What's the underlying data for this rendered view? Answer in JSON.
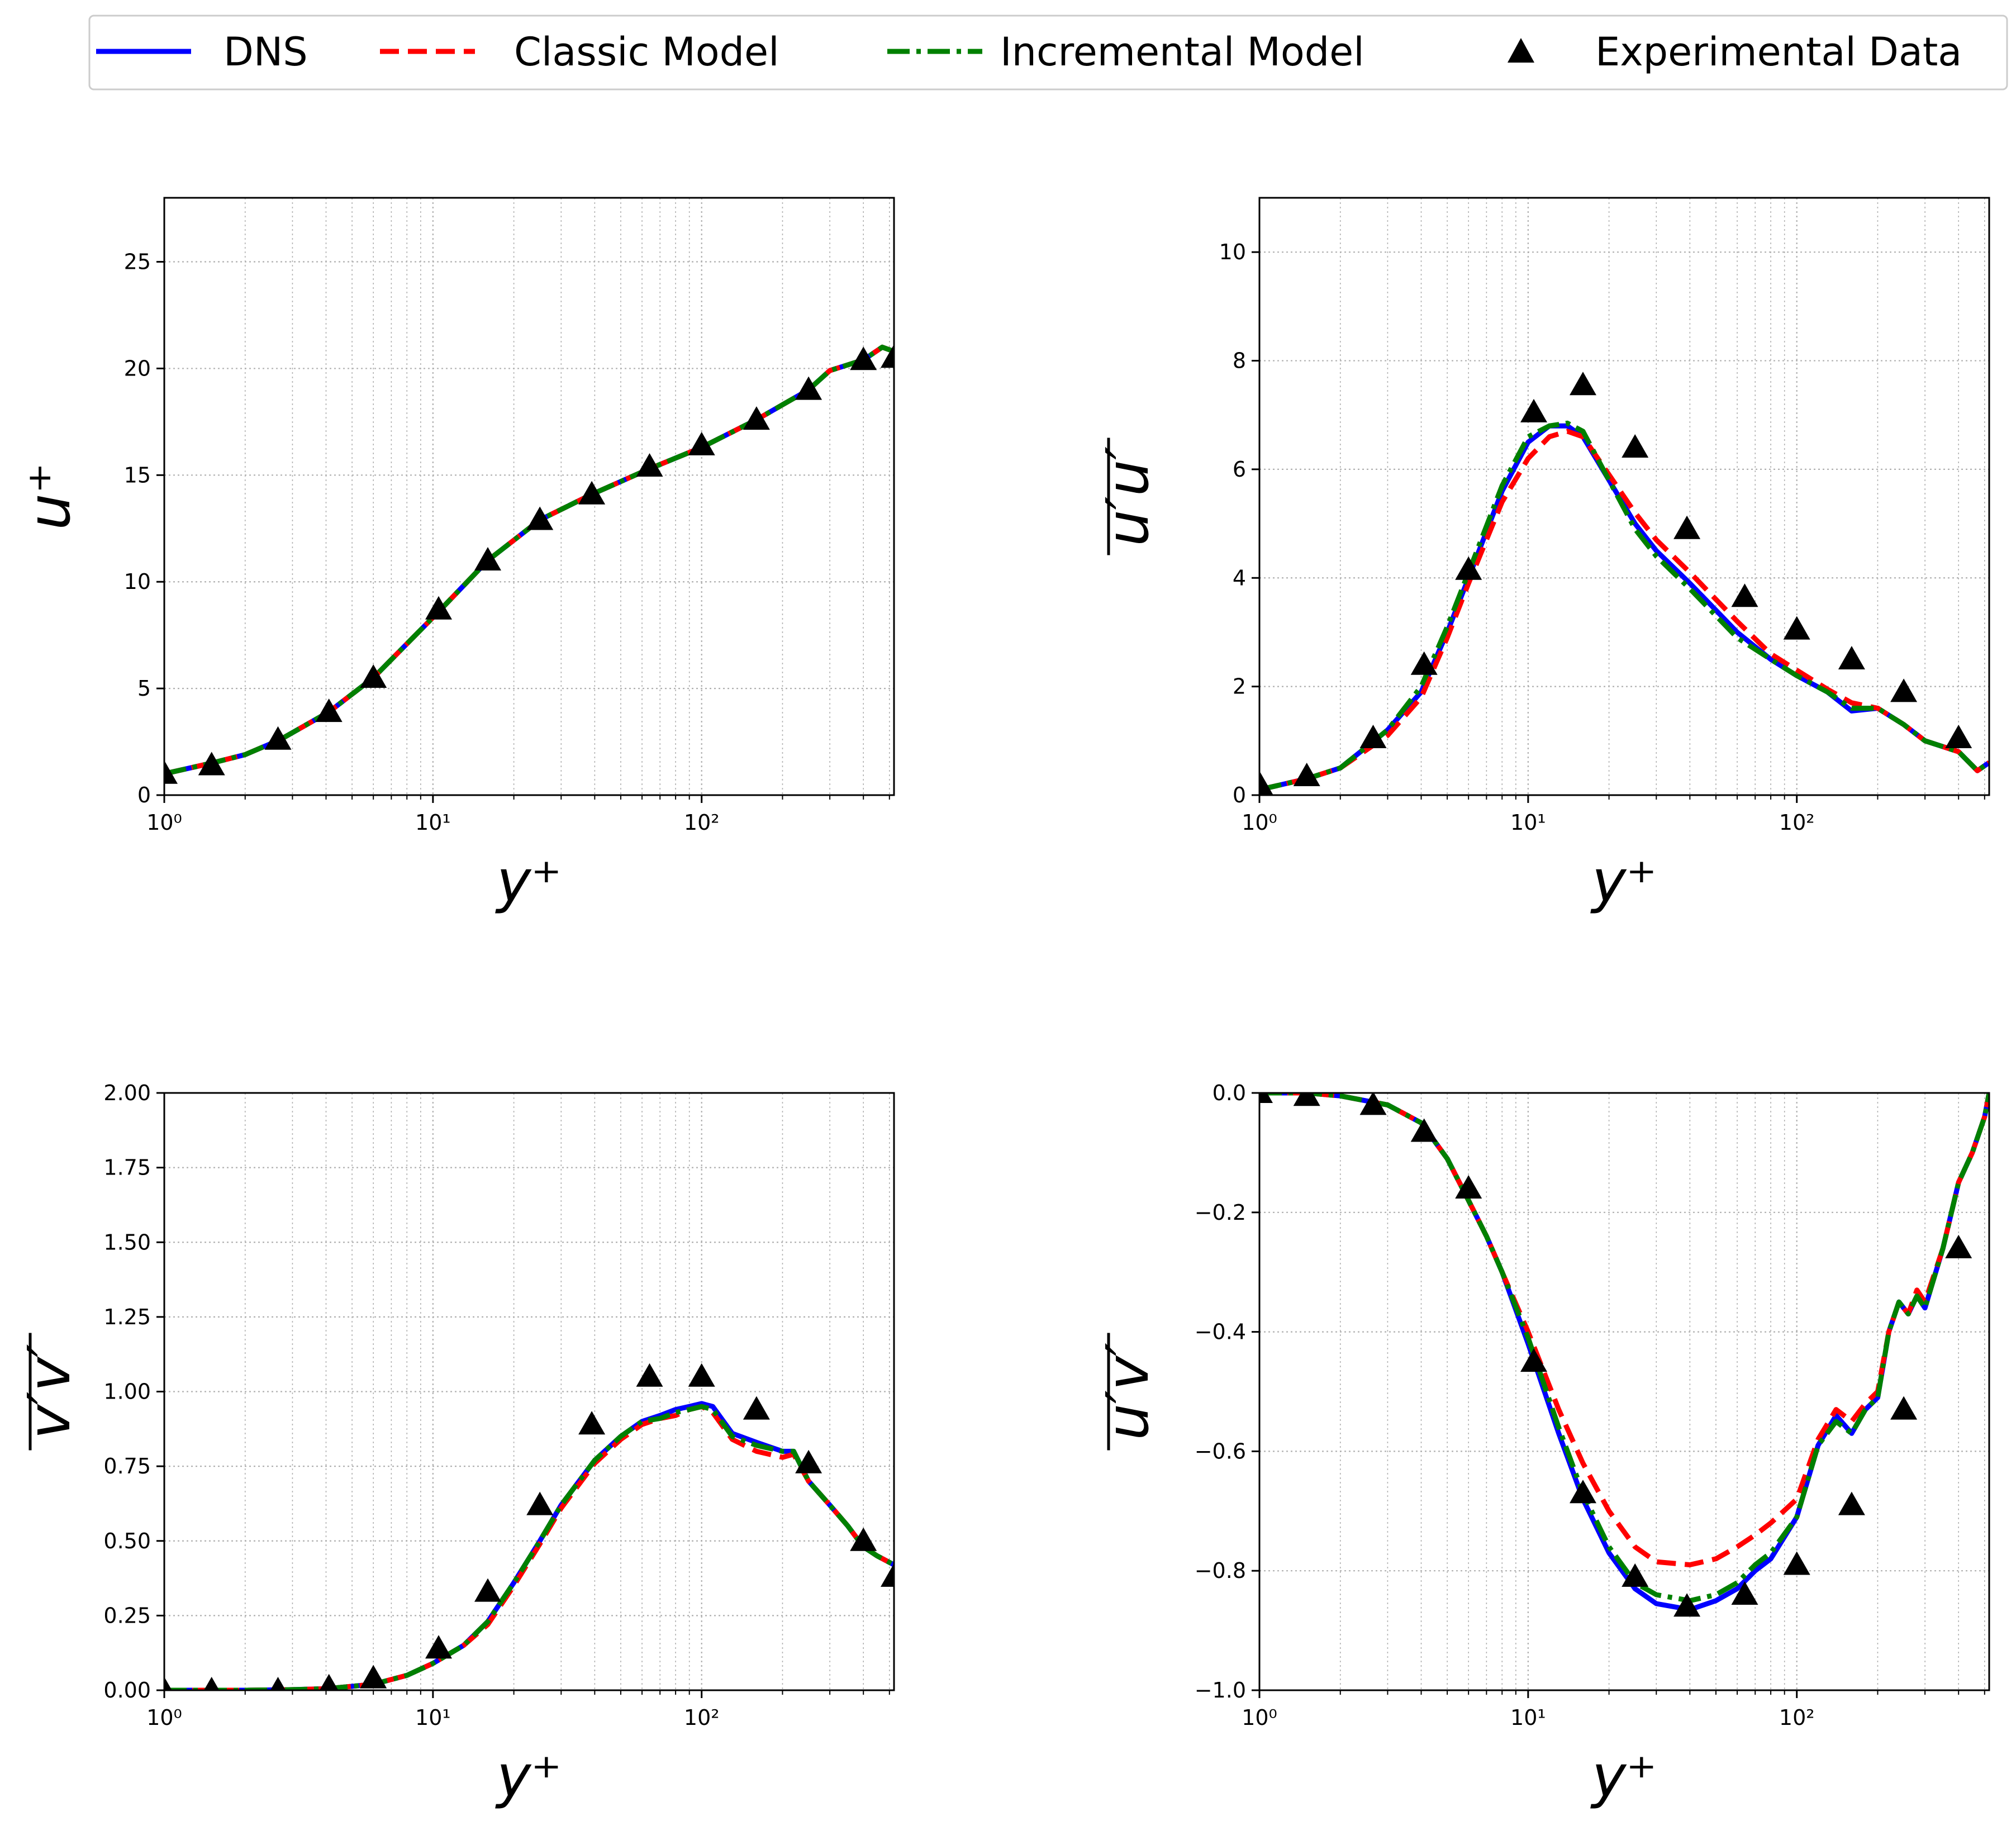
{
  "colors": {
    "dns": "#0000ff",
    "classic": "#ff0000",
    "incremental": "#008000",
    "experimental": "#000000",
    "grid": "#b0b0b0"
  },
  "legend": {
    "items": [
      {
        "key": "dns",
        "label": "DNS",
        "style": "solid"
      },
      {
        "key": "classic",
        "label": "Classic Model",
        "style": "dashed"
      },
      {
        "key": "incremental",
        "label": "Incremental Model",
        "style": "dashdot"
      },
      {
        "key": "experimental",
        "label": "Experimental Data",
        "style": "marker"
      }
    ]
  },
  "chart_data": [
    {
      "type": "line",
      "xscale": "log",
      "xlim": [
        1,
        520
      ],
      "ylim": [
        0,
        28
      ],
      "yticks": [
        0,
        5,
        10,
        15,
        20,
        25
      ],
      "grid": true,
      "xlabel": "y⁺",
      "ylabel": "u⁺",
      "xtick_labels": [
        "10⁰",
        "10¹",
        "10²"
      ],
      "ytick_labels": [
        "0",
        "5",
        "10",
        "15",
        "20",
        "25"
      ],
      "series": [
        {
          "name": "DNS",
          "x": [
            1,
            1.5,
            2,
            2.7,
            4.1,
            6,
            10.5,
            16,
            25,
            39,
            64,
            100,
            160,
            250,
            300,
            400,
            470,
            520
          ],
          "y": [
            1.0,
            1.5,
            1.9,
            2.6,
            3.9,
            5.5,
            8.6,
            11.0,
            12.9,
            14.1,
            15.3,
            16.3,
            17.6,
            19.0,
            19.9,
            20.4,
            21.0,
            20.8
          ]
        },
        {
          "name": "Classic Model",
          "x": [
            1,
            1.5,
            2,
            2.7,
            4.1,
            6,
            10.5,
            16,
            25,
            39,
            64,
            100,
            160,
            250,
            300,
            400,
            470,
            520
          ],
          "y": [
            1.0,
            1.5,
            1.9,
            2.6,
            3.9,
            5.5,
            8.6,
            11.0,
            12.9,
            14.1,
            15.3,
            16.3,
            17.6,
            19.0,
            19.9,
            20.4,
            21.0,
            20.8
          ]
        },
        {
          "name": "Incremental Model",
          "x": [
            1,
            1.5,
            2,
            2.7,
            4.1,
            6,
            10.5,
            16,
            25,
            39,
            64,
            100,
            160,
            250,
            300,
            400,
            470,
            520
          ],
          "y": [
            1.0,
            1.5,
            1.9,
            2.6,
            3.9,
            5.5,
            8.6,
            11.0,
            12.9,
            14.1,
            15.3,
            16.3,
            17.6,
            19.0,
            19.9,
            20.4,
            21.0,
            20.8
          ]
        }
      ],
      "experimental": {
        "x": [
          1,
          1.5,
          2.65,
          4.1,
          6,
          10.5,
          16,
          25,
          39,
          64,
          100,
          160,
          250,
          400,
          520
        ],
        "y": [
          1.0,
          1.4,
          2.6,
          3.9,
          5.5,
          8.7,
          11.0,
          12.9,
          14.1,
          15.4,
          16.4,
          17.6,
          19.0,
          20.4,
          20.5
        ]
      }
    },
    {
      "type": "line",
      "xscale": "log",
      "xlim": [
        1,
        520
      ],
      "ylim": [
        0,
        11
      ],
      "yticks": [
        0,
        2,
        4,
        6,
        8,
        10
      ],
      "grid": true,
      "xlabel": "y⁺",
      "ylabel": "u′u′",
      "xtick_labels": [
        "10⁰",
        "10¹",
        "10²"
      ],
      "ytick_labels": [
        "0",
        "2",
        "4",
        "6",
        "8",
        "10"
      ],
      "series": [
        {
          "name": "DNS",
          "x": [
            1,
            1.5,
            2,
            3,
            4,
            5,
            6,
            8,
            10,
            12,
            14,
            16,
            20,
            25,
            30,
            40,
            60,
            80,
            100,
            130,
            160,
            200,
            250,
            300,
            400,
            470,
            520
          ],
          "y": [
            0.1,
            0.3,
            0.5,
            1.2,
            1.9,
            3.0,
            4.0,
            5.6,
            6.5,
            6.8,
            6.8,
            6.6,
            5.8,
            5.0,
            4.5,
            3.9,
            3.0,
            2.5,
            2.2,
            1.9,
            1.55,
            1.6,
            1.3,
            1.0,
            0.8,
            0.45,
            0.6
          ]
        },
        {
          "name": "Classic Model",
          "x": [
            1,
            1.5,
            2,
            3,
            4,
            5,
            6,
            8,
            10,
            12,
            14,
            16,
            20,
            25,
            30,
            40,
            60,
            80,
            100,
            130,
            160,
            200,
            250,
            300,
            400,
            470,
            520
          ],
          "y": [
            0.1,
            0.3,
            0.5,
            1.1,
            1.8,
            2.9,
            3.9,
            5.4,
            6.2,
            6.6,
            6.7,
            6.6,
            5.9,
            5.2,
            4.7,
            4.1,
            3.2,
            2.6,
            2.3,
            1.95,
            1.7,
            1.6,
            1.3,
            1.0,
            0.8,
            0.45,
            0.6
          ]
        },
        {
          "name": "Incremental Model",
          "x": [
            1,
            1.5,
            2,
            3,
            4,
            5,
            6,
            8,
            10,
            12,
            14,
            16,
            20,
            25,
            30,
            40,
            60,
            80,
            100,
            130,
            160,
            200,
            250,
            300,
            400,
            470,
            520
          ],
          "y": [
            0.1,
            0.3,
            0.5,
            1.2,
            2.0,
            3.1,
            4.1,
            5.7,
            6.6,
            6.8,
            6.85,
            6.7,
            5.8,
            4.9,
            4.4,
            3.8,
            2.9,
            2.5,
            2.2,
            1.9,
            1.6,
            1.6,
            1.3,
            1.0,
            0.8,
            0.45,
            0.6
          ]
        }
      ],
      "experimental": {
        "x": [
          1,
          1.5,
          2.65,
          4.1,
          6,
          10.5,
          16,
          25,
          39,
          64,
          100,
          160,
          250,
          400
        ],
        "y": [
          0.2,
          0.35,
          1.05,
          2.4,
          4.15,
          7.05,
          7.55,
          6.4,
          4.9,
          3.65,
          3.05,
          2.5,
          1.9,
          1.05
        ]
      }
    },
    {
      "type": "line",
      "xscale": "log",
      "xlim": [
        1,
        520
      ],
      "ylim": [
        0,
        2
      ],
      "yticks": [
        0,
        0.25,
        0.5,
        0.75,
        1.0,
        1.25,
        1.5,
        1.75,
        2.0
      ],
      "grid": true,
      "xlabel": "y⁺",
      "ylabel": "v′v′",
      "xtick_labels": [
        "10⁰",
        "10¹",
        "10²"
      ],
      "ytick_labels": [
        "0.00",
        "0.25",
        "0.50",
        "0.75",
        "1.00",
        "1.25",
        "1.50",
        "1.75",
        "2.00"
      ],
      "series": [
        {
          "name": "DNS",
          "x": [
            1,
            2,
            3,
            4,
            6,
            8,
            10,
            13,
            16,
            20,
            25,
            30,
            40,
            50,
            60,
            70,
            80,
            90,
            100,
            110,
            130,
            160,
            200,
            220,
            250,
            300,
            350,
            400,
            450,
            520
          ],
          "y": [
            0,
            0,
            0.002,
            0.005,
            0.02,
            0.05,
            0.09,
            0.15,
            0.23,
            0.36,
            0.5,
            0.62,
            0.77,
            0.85,
            0.9,
            0.92,
            0.94,
            0.95,
            0.96,
            0.95,
            0.86,
            0.83,
            0.8,
            0.8,
            0.7,
            0.62,
            0.55,
            0.48,
            0.45,
            0.42
          ]
        },
        {
          "name": "Classic Model",
          "x": [
            1,
            2,
            3,
            4,
            6,
            8,
            10,
            13,
            16,
            20,
            25,
            30,
            40,
            50,
            60,
            70,
            80,
            90,
            100,
            110,
            130,
            160,
            200,
            220,
            250,
            300,
            350,
            400,
            450,
            520
          ],
          "y": [
            0,
            0,
            0.002,
            0.005,
            0.02,
            0.05,
            0.09,
            0.15,
            0.22,
            0.35,
            0.49,
            0.61,
            0.76,
            0.84,
            0.89,
            0.91,
            0.92,
            0.94,
            0.95,
            0.93,
            0.84,
            0.8,
            0.78,
            0.79,
            0.7,
            0.62,
            0.55,
            0.48,
            0.45,
            0.42
          ]
        },
        {
          "name": "Incremental Model",
          "x": [
            1,
            2,
            3,
            4,
            6,
            8,
            10,
            13,
            16,
            20,
            25,
            30,
            40,
            50,
            60,
            70,
            80,
            90,
            100,
            110,
            130,
            160,
            200,
            220,
            250,
            300,
            350,
            400,
            450,
            520
          ],
          "y": [
            0,
            0,
            0.002,
            0.005,
            0.02,
            0.05,
            0.09,
            0.15,
            0.23,
            0.36,
            0.5,
            0.62,
            0.77,
            0.85,
            0.9,
            0.91,
            0.93,
            0.94,
            0.95,
            0.94,
            0.85,
            0.82,
            0.8,
            0.8,
            0.7,
            0.62,
            0.55,
            0.48,
            0.45,
            0.42
          ]
        }
      ],
      "experimental": {
        "x": [
          1,
          1.5,
          2.65,
          4.1,
          6,
          10.5,
          16,
          25,
          39,
          64,
          100,
          160,
          250,
          400,
          520
        ],
        "y": [
          0,
          0,
          0,
          0.01,
          0.04,
          0.14,
          0.33,
          0.62,
          0.89,
          1.05,
          1.05,
          0.94,
          0.76,
          0.5,
          0.38
        ]
      }
    },
    {
      "type": "line",
      "xscale": "log",
      "xlim": [
        1,
        520
      ],
      "ylim": [
        -1,
        0
      ],
      "yticks": [
        -1.0,
        -0.8,
        -0.6,
        -0.4,
        -0.2,
        0.0
      ],
      "grid": true,
      "xlabel": "y⁺",
      "ylabel": "u′v′",
      "xtick_labels": [
        "10⁰",
        "10¹",
        "10²"
      ],
      "ytick_labels": [
        "−1.0",
        "−0.8",
        "−0.6",
        "−0.4",
        "−0.2",
        "0.0"
      ],
      "series": [
        {
          "name": "DNS",
          "x": [
            1,
            1.5,
            2,
            3,
            4,
            5,
            6,
            7,
            8,
            10,
            13,
            16,
            20,
            25,
            30,
            40,
            50,
            60,
            70,
            80,
            100,
            120,
            140,
            160,
            180,
            200,
            220,
            240,
            260,
            280,
            300,
            350,
            400,
            450,
            500,
            520
          ],
          "y": [
            0,
            0,
            -0.005,
            -0.02,
            -0.05,
            -0.11,
            -0.18,
            -0.24,
            -0.3,
            -0.42,
            -0.57,
            -0.68,
            -0.77,
            -0.83,
            -0.855,
            -0.865,
            -0.85,
            -0.83,
            -0.8,
            -0.78,
            -0.71,
            -0.59,
            -0.54,
            -0.57,
            -0.53,
            -0.51,
            -0.4,
            -0.35,
            -0.37,
            -0.34,
            -0.36,
            -0.26,
            -0.15,
            -0.1,
            -0.04,
            0
          ]
        },
        {
          "name": "Classic Model",
          "x": [
            1,
            1.5,
            2,
            3,
            4,
            5,
            6,
            7,
            8,
            10,
            13,
            16,
            20,
            25,
            30,
            40,
            50,
            60,
            70,
            80,
            100,
            120,
            140,
            160,
            180,
            200,
            220,
            240,
            260,
            280,
            300,
            350,
            400,
            450,
            500,
            520
          ],
          "y": [
            0,
            0,
            -0.005,
            -0.02,
            -0.05,
            -0.11,
            -0.18,
            -0.24,
            -0.3,
            -0.4,
            -0.53,
            -0.62,
            -0.7,
            -0.76,
            -0.785,
            -0.79,
            -0.78,
            -0.76,
            -0.74,
            -0.72,
            -0.68,
            -0.58,
            -0.53,
            -0.55,
            -0.52,
            -0.5,
            -0.4,
            -0.35,
            -0.37,
            -0.33,
            -0.35,
            -0.26,
            -0.15,
            -0.1,
            -0.04,
            0
          ]
        },
        {
          "name": "Incremental Model",
          "x": [
            1,
            1.5,
            2,
            3,
            4,
            5,
            6,
            7,
            8,
            10,
            13,
            16,
            20,
            25,
            30,
            40,
            50,
            60,
            70,
            80,
            100,
            120,
            140,
            160,
            180,
            200,
            220,
            240,
            260,
            280,
            300,
            350,
            400,
            450,
            500,
            520
          ],
          "y": [
            0,
            0,
            -0.005,
            -0.02,
            -0.05,
            -0.11,
            -0.18,
            -0.24,
            -0.3,
            -0.41,
            -0.56,
            -0.67,
            -0.76,
            -0.82,
            -0.84,
            -0.85,
            -0.84,
            -0.82,
            -0.79,
            -0.77,
            -0.71,
            -0.59,
            -0.55,
            -0.57,
            -0.53,
            -0.51,
            -0.4,
            -0.35,
            -0.37,
            -0.34,
            -0.36,
            -0.26,
            -0.15,
            -0.1,
            -0.04,
            0
          ]
        }
      ],
      "experimental": {
        "x": [
          1,
          1.5,
          2.65,
          4.1,
          6,
          10.5,
          16,
          25,
          39,
          64,
          100,
          160,
          250,
          400
        ],
        "y": [
          0,
          -0.005,
          -0.02,
          -0.065,
          -0.16,
          -0.45,
          -0.67,
          -0.81,
          -0.86,
          -0.84,
          -0.79,
          -0.69,
          -0.53,
          -0.26
        ]
      }
    }
  ]
}
